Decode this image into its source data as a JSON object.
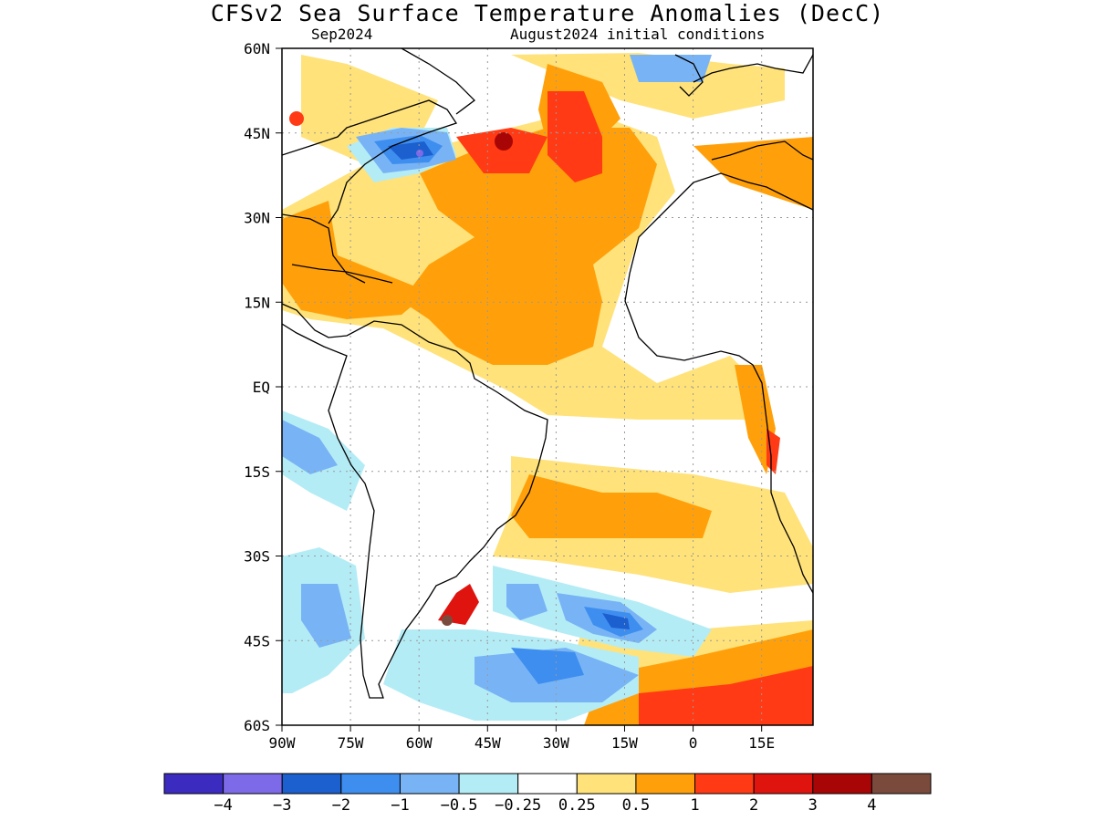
{
  "title": "CFSv2 Sea Surface Temperature Anomalies (DecC)",
  "subtitle_left": "Sep2024",
  "subtitle_right": "August2024 initial conditions",
  "lat_labels": [
    "60N",
    "45N",
    "30N",
    "15N",
    "EQ",
    "15S",
    "30S",
    "45S",
    "60S"
  ],
  "lon_labels": [
    "90W",
    "75W",
    "60W",
    "45W",
    "30W",
    "15W",
    "0",
    "15E"
  ],
  "colorbar": {
    "colors": [
      "#3b2bbf",
      "#7d6ae8",
      "#1c5fcf",
      "#3e8ef0",
      "#78b4f5",
      "#b4ecf6",
      "#ffffff",
      "#ffe27a",
      "#ffa00a",
      "#ff3a14",
      "#e0140f",
      "#a80606",
      "#7a4b3c"
    ],
    "labels": [
      "−4",
      "−3",
      "−2",
      "−1",
      "−0.5",
      "−0.25",
      "0.25",
      "0.5",
      "1",
      "2",
      "3",
      "4"
    ]
  }
}
